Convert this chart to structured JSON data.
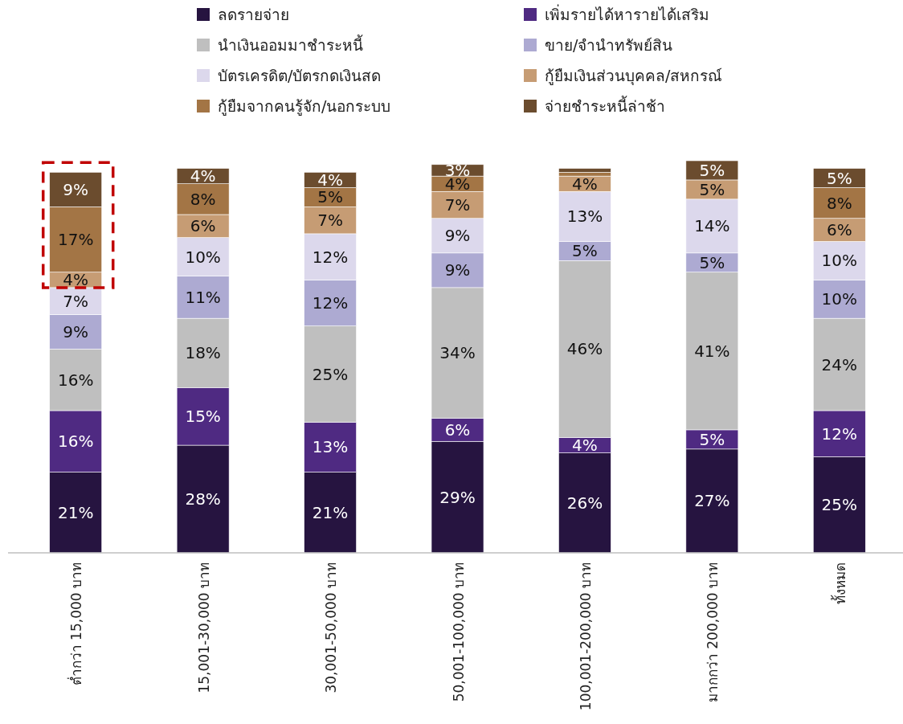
{
  "chart_data": {
    "type": "bar",
    "stacked": true,
    "legend": "top",
    "data_labels": true,
    "categories": [
      "ต่ำกว่า 15,000 บาท",
      "15,001-30,000 บาท",
      "30,001-50,000 บาท",
      "50,001-100,000 บาท",
      "100,001-200,000 บาท",
      "มากกว่า 200,000 บาท",
      "ทั้งหมด"
    ],
    "series": [
      {
        "name": "ลดรายจ่าย",
        "color": "#261440",
        "values": [
          21,
          28,
          21,
          29,
          26,
          27,
          25
        ],
        "value_labels": [
          "21%",
          "28%",
          "21%",
          "29%",
          "26%",
          "27%",
          "25%"
        ]
      },
      {
        "name": "เพิ่มรายได้หารายได้เสริม",
        "color": "#4f2a82",
        "values": [
          16,
          15,
          13,
          6,
          4,
          5,
          12
        ],
        "value_labels": [
          "16%",
          "15%",
          "13%",
          "6%",
          "4%",
          "5%",
          "12%"
        ]
      },
      {
        "name": "นำเงินออมมาชำระหนี้",
        "color": "#bfbfbf",
        "values": [
          16,
          18,
          25,
          34,
          46,
          41,
          24
        ],
        "value_labels": [
          "16%",
          "18%",
          "25%",
          "34%",
          "46%",
          "41%",
          "24%"
        ]
      },
      {
        "name": "ขาย/จำนำทรัพย์สิน",
        "color": "#adaad2",
        "values": [
          9,
          11,
          12,
          9,
          5,
          5,
          10
        ],
        "value_labels": [
          "9%",
          "11%",
          "12%",
          "9%",
          "5%",
          "5%",
          "10%"
        ]
      },
      {
        "name": "บัตรเครดิต/บัตรกดเงินสด",
        "color": "#dcd8ec",
        "values": [
          7,
          10,
          12,
          9,
          13,
          14,
          10
        ],
        "value_labels": [
          "7%",
          "10%",
          "12%",
          "9%",
          "13%",
          "14%",
          "10%"
        ]
      },
      {
        "name": "กู้ยืมเงินส่วนบุคคล/สหกรณ์",
        "color": "#c69c74",
        "values": [
          4,
          6,
          7,
          7,
          4,
          5,
          6
        ],
        "value_labels": [
          "4%",
          "6%",
          "7%",
          "7%",
          "4%",
          "5%",
          "6%"
        ]
      },
      {
        "name": "กู้ยืมจากคนรู้จัก/นอกระบบ",
        "color": "#a37545",
        "values": [
          17,
          8,
          5,
          4,
          1,
          0,
          8
        ],
        "value_labels": [
          "17%",
          "8%",
          "5%",
          "4%",
          null,
          null,
          "8%"
        ]
      },
      {
        "name": "จ่ายชำระหนี้ล่าช้า",
        "color": "#6b4c2e",
        "values": [
          9,
          4,
          4,
          3,
          1,
          5,
          5
        ],
        "value_labels": [
          "9%",
          "4%",
          "4%",
          "3%",
          null,
          "5%",
          "5%"
        ]
      }
    ]
  }
}
